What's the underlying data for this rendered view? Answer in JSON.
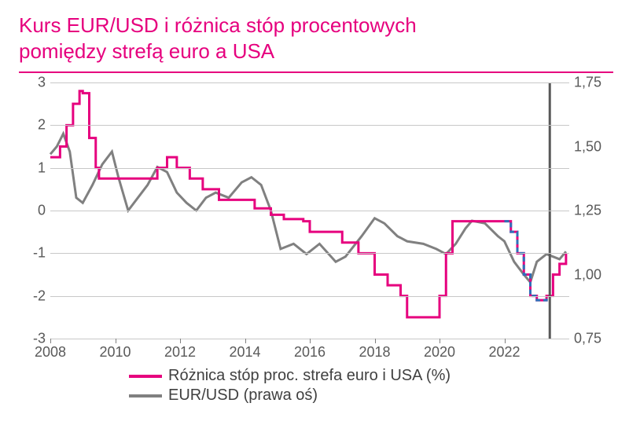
{
  "title_line1": "Kurs EUR/USD i różnica stóp procentowych",
  "title_line2": "pomiędzy strefą euro a USA",
  "chart": {
    "type": "line-dual-axis",
    "x_start": 2008,
    "x_end": 2024,
    "x_ticks": [
      2008,
      2010,
      2012,
      2014,
      2016,
      2018,
      2020,
      2022
    ],
    "y_left": {
      "min": -3,
      "max": 3,
      "ticks": [
        -3,
        -2,
        -1,
        0,
        1,
        2,
        3
      ]
    },
    "y_right": {
      "min": 0.75,
      "max": 1.75,
      "ticks": [
        "0,75",
        "1,00",
        "1,25",
        "1,50",
        "1,75"
      ],
      "tick_vals": [
        0.75,
        1.0,
        1.25,
        1.5,
        1.75
      ]
    },
    "vline_x": 2023.4,
    "colors": {
      "title": "#e6007e",
      "grid": "#c8c8c8",
      "axis_text": "#595959",
      "series_pink": "#e6007e",
      "series_gray": "#808080",
      "series_blue": "#2f6fb8",
      "vline": "#595959",
      "background": "#ffffff"
    },
    "line_width_data": 3,
    "line_width_grid": 1,
    "font_size_axis": 18,
    "font_size_title": 26,
    "font_size_legend": 20,
    "series_diff": {
      "axis": "left",
      "color": "#e6007e",
      "step": true,
      "points": [
        [
          2008.0,
          1.25
        ],
        [
          2008.1,
          1.25
        ],
        [
          2008.3,
          1.5
        ],
        [
          2008.5,
          2.0
        ],
        [
          2008.7,
          2.5
        ],
        [
          2008.9,
          2.8
        ],
        [
          2009.0,
          2.75
        ],
        [
          2009.2,
          1.7
        ],
        [
          2009.4,
          1.0
        ],
        [
          2009.5,
          0.75
        ],
        [
          2010.2,
          0.75
        ],
        [
          2010.4,
          0.75
        ],
        [
          2011.0,
          0.75
        ],
        [
          2011.3,
          1.0
        ],
        [
          2011.6,
          1.25
        ],
        [
          2011.9,
          1.0
        ],
        [
          2012.3,
          0.75
        ],
        [
          2012.7,
          0.5
        ],
        [
          2013.2,
          0.25
        ],
        [
          2013.7,
          0.25
        ],
        [
          2014.3,
          0.05
        ],
        [
          2014.8,
          -0.1
        ],
        [
          2015.2,
          -0.2
        ],
        [
          2015.8,
          -0.25
        ],
        [
          2016.0,
          -0.5
        ],
        [
          2016.5,
          -0.5
        ],
        [
          2017.0,
          -0.75
        ],
        [
          2017.5,
          -1.0
        ],
        [
          2018.0,
          -1.5
        ],
        [
          2018.4,
          -1.75
        ],
        [
          2018.8,
          -2.0
        ],
        [
          2019.0,
          -2.5
        ],
        [
          2019.7,
          -2.5
        ],
        [
          2020.0,
          -2.0
        ],
        [
          2020.2,
          -1.0
        ],
        [
          2020.4,
          -0.25
        ],
        [
          2021.0,
          -0.25
        ],
        [
          2021.8,
          -0.25
        ],
        [
          2022.0,
          -0.25
        ],
        [
          2022.2,
          -0.5
        ],
        [
          2022.4,
          -1.0
        ],
        [
          2022.6,
          -1.5
        ],
        [
          2022.8,
          -2.0
        ],
        [
          2023.0,
          -2.1
        ],
        [
          2023.3,
          -2.0
        ],
        [
          2023.5,
          -1.5
        ],
        [
          2023.7,
          -1.25
        ],
        [
          2023.9,
          -1.0
        ]
      ]
    },
    "series_diff_dash": {
      "axis": "left",
      "color": "#2f6fb8",
      "dash": "6,4",
      "step": true,
      "points": [
        [
          2022.0,
          -0.25
        ],
        [
          2022.2,
          -0.5
        ],
        [
          2022.4,
          -1.0
        ],
        [
          2022.6,
          -1.5
        ],
        [
          2022.8,
          -2.0
        ],
        [
          2023.0,
          -2.1
        ],
        [
          2023.3,
          -2.0
        ]
      ]
    },
    "series_eurusd": {
      "axis": "right",
      "color": "#808080",
      "step": false,
      "points": [
        [
          2008.0,
          1.47
        ],
        [
          2008.2,
          1.5
        ],
        [
          2008.4,
          1.55
        ],
        [
          2008.6,
          1.48
        ],
        [
          2008.8,
          1.3
        ],
        [
          2009.0,
          1.28
        ],
        [
          2009.3,
          1.35
        ],
        [
          2009.6,
          1.43
        ],
        [
          2009.9,
          1.48
        ],
        [
          2010.1,
          1.38
        ],
        [
          2010.4,
          1.25
        ],
        [
          2010.7,
          1.3
        ],
        [
          2011.0,
          1.35
        ],
        [
          2011.3,
          1.42
        ],
        [
          2011.6,
          1.4
        ],
        [
          2011.9,
          1.32
        ],
        [
          2012.2,
          1.28
        ],
        [
          2012.5,
          1.25
        ],
        [
          2012.8,
          1.3
        ],
        [
          2013.1,
          1.32
        ],
        [
          2013.5,
          1.3
        ],
        [
          2013.9,
          1.36
        ],
        [
          2014.2,
          1.38
        ],
        [
          2014.5,
          1.35
        ],
        [
          2014.8,
          1.25
        ],
        [
          2015.1,
          1.1
        ],
        [
          2015.5,
          1.12
        ],
        [
          2015.9,
          1.08
        ],
        [
          2016.3,
          1.12
        ],
        [
          2016.8,
          1.05
        ],
        [
          2017.1,
          1.07
        ],
        [
          2017.6,
          1.15
        ],
        [
          2018.0,
          1.22
        ],
        [
          2018.3,
          1.2
        ],
        [
          2018.7,
          1.15
        ],
        [
          2019.0,
          1.13
        ],
        [
          2019.5,
          1.12
        ],
        [
          2019.9,
          1.1
        ],
        [
          2020.2,
          1.08
        ],
        [
          2020.5,
          1.12
        ],
        [
          2020.8,
          1.18
        ],
        [
          2021.0,
          1.21
        ],
        [
          2021.4,
          1.2
        ],
        [
          2021.8,
          1.15
        ],
        [
          2022.0,
          1.13
        ],
        [
          2022.3,
          1.05
        ],
        [
          2022.6,
          1.0
        ],
        [
          2022.8,
          0.97
        ],
        [
          2023.0,
          1.05
        ],
        [
          2023.3,
          1.08
        ],
        [
          2023.5,
          1.07
        ],
        [
          2023.7,
          1.06
        ],
        [
          2023.9,
          1.09
        ]
      ]
    }
  },
  "legend": {
    "item1": "Różnica stóp proc. strefa euro i USA (%)",
    "item2": "EUR/USD (prawa oś)"
  }
}
